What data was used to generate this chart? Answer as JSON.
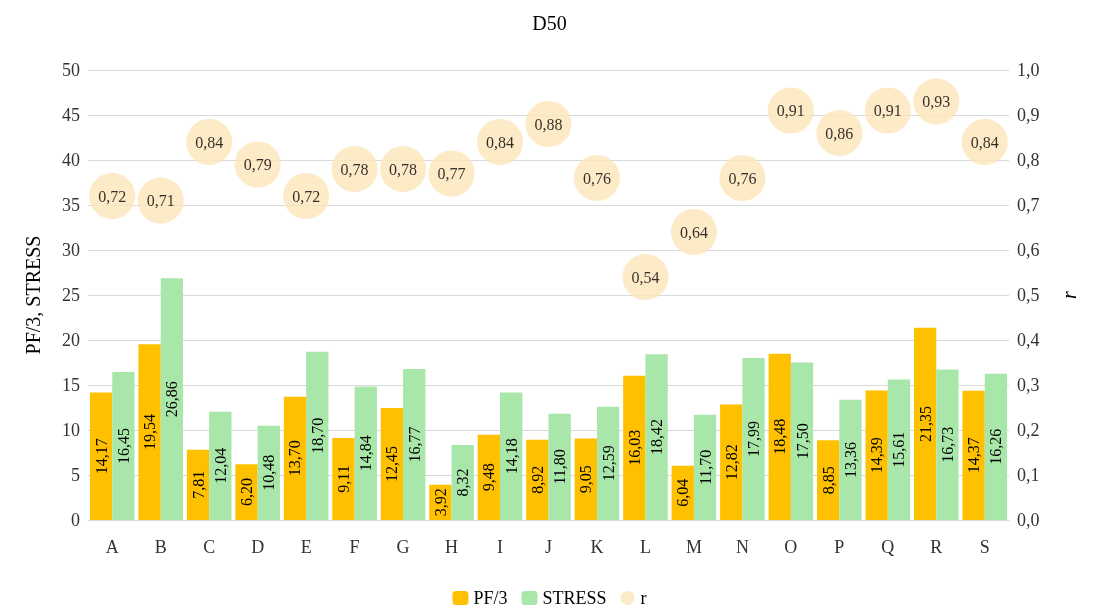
{
  "chart_data": {
    "type": "bar",
    "title": "D50",
    "ylabel": "PF/3, STRESS",
    "y2label": "r",
    "categories": [
      "A",
      "B",
      "C",
      "D",
      "E",
      "F",
      "G",
      "H",
      "I",
      "J",
      "K",
      "L",
      "M",
      "N",
      "O",
      "P",
      "Q",
      "R",
      "S"
    ],
    "series": [
      {
        "name": "PF/3",
        "color": "#ffc000",
        "values": [
          14.17,
          19.54,
          7.81,
          6.2,
          13.7,
          9.11,
          12.45,
          3.92,
          9.48,
          8.92,
          9.05,
          16.03,
          6.04,
          12.82,
          18.48,
          8.85,
          14.39,
          21.35,
          14.37
        ],
        "value_labels": [
          "14,17",
          "19,54",
          "7,81",
          "6,20",
          "13,70",
          "9,11",
          "12,45",
          "3,92",
          "9,48",
          "8,92",
          "9,05",
          "16,03",
          "6,04",
          "12,82",
          "18,48",
          "8,85",
          "14,39",
          "21,35",
          "14,37"
        ]
      },
      {
        "name": "STRESS",
        "color": "#a9e6a9",
        "values": [
          16.45,
          26.86,
          12.04,
          10.48,
          18.7,
          14.84,
          16.77,
          8.32,
          14.18,
          11.8,
          12.59,
          18.42,
          11.7,
          17.99,
          17.5,
          13.36,
          15.61,
          16.73,
          16.26
        ],
        "value_labels": [
          "16,45",
          "26,86",
          "12,04",
          "10,48",
          "18,70",
          "14,84",
          "16,77",
          "8,32",
          "14,18",
          "11,80",
          "12,59",
          "18,42",
          "11,70",
          "17,99",
          "17,50",
          "13,36",
          "15,61",
          "16,73",
          "16,26"
        ]
      },
      {
        "name": "r",
        "type": "scatter",
        "axis": "y2",
        "color": "#fde5b9",
        "marker": "circle",
        "values": [
          0.72,
          0.71,
          0.84,
          0.79,
          0.72,
          0.78,
          0.78,
          0.77,
          0.84,
          0.88,
          0.76,
          0.54,
          0.64,
          0.76,
          0.91,
          0.86,
          0.91,
          0.93,
          0.84
        ],
        "value_labels": [
          "0,72",
          "0,71",
          "0,84",
          "0,79",
          "0,72",
          "0,78",
          "0,78",
          "0,77",
          "0,84",
          "0,88",
          "0,76",
          "0,54",
          "0,64",
          "0,76",
          "0,91",
          "0,86",
          "0,91",
          "0,93",
          "0,84"
        ]
      }
    ],
    "ylim": [
      0,
      50
    ],
    "yticks": [
      0,
      5,
      10,
      15,
      20,
      25,
      30,
      35,
      40,
      45,
      50
    ],
    "y2lim": [
      0,
      1
    ],
    "y2ticks": [
      {
        "value": 0,
        "label": "0,0"
      },
      {
        "value": 0.1,
        "label": "0,1"
      },
      {
        "value": 0.2,
        "label": "0,2"
      },
      {
        "value": 0.3,
        "label": "0,3"
      },
      {
        "value": 0.4,
        "label": "0,4"
      },
      {
        "value": 0.5,
        "label": "0,5"
      },
      {
        "value": 0.6,
        "label": "0,6"
      },
      {
        "value": 0.7,
        "label": "0,7"
      },
      {
        "value": 0.8,
        "label": "0,8"
      },
      {
        "value": 0.9,
        "label": "0,9"
      },
      {
        "value": 1,
        "label": "1,0"
      }
    ],
    "grid": "y",
    "legend": "bottom"
  }
}
